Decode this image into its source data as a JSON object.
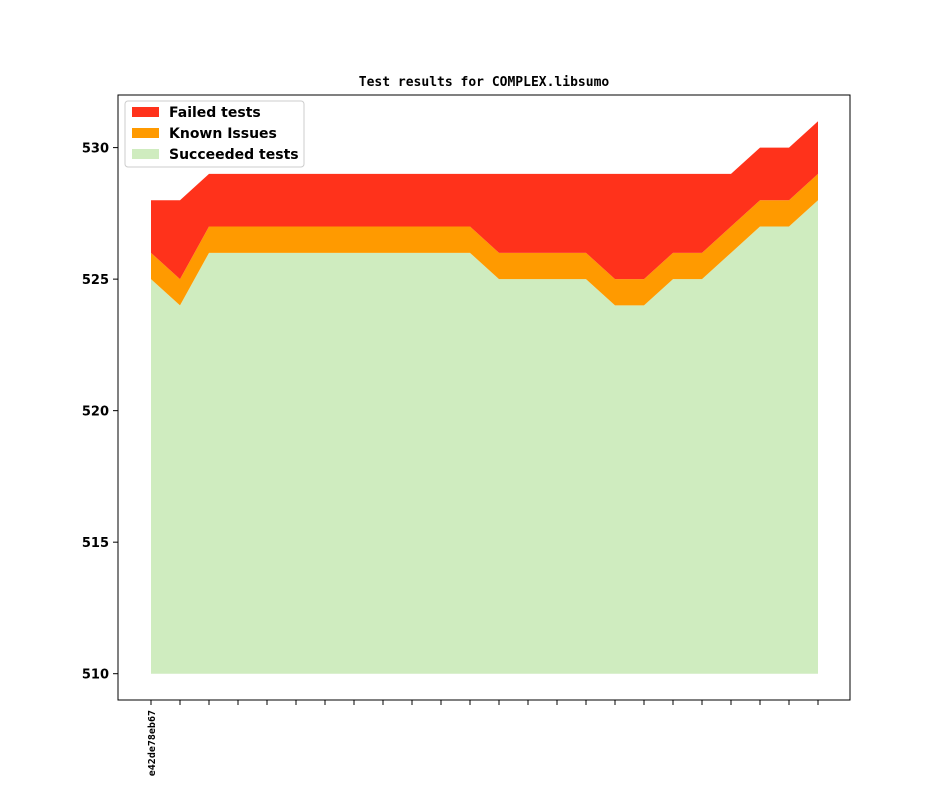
{
  "chart_data": {
    "type": "area",
    "title": "Test results for COMPLEX.libsumo",
    "xlabel": "",
    "ylabel": "",
    "ylim": [
      509,
      532
    ],
    "yticks": [
      510,
      515,
      520,
      525,
      530
    ],
    "x_tick_labels": [
      "e42de78eb67"
    ],
    "x_count": 24,
    "baseline": 510,
    "series": [
      {
        "name": "Succeeded tests",
        "color": "#cfecbf",
        "values": [
          525,
          524,
          526,
          526,
          526,
          526,
          526,
          526,
          526,
          526,
          526,
          526,
          525,
          525,
          525,
          525,
          524,
          524,
          525,
          525,
          526,
          527,
          527,
          528
        ]
      },
      {
        "name": "Known Issues",
        "color": "#ff9a00",
        "values": [
          1,
          1,
          1,
          1,
          1,
          1,
          1,
          1,
          1,
          1,
          1,
          1,
          1,
          1,
          1,
          1,
          1,
          1,
          1,
          1,
          1,
          1,
          1,
          1
        ]
      },
      {
        "name": "Failed tests",
        "color": "#ff321b",
        "values": [
          2,
          3,
          2,
          2,
          2,
          2,
          2,
          2,
          2,
          2,
          2,
          2,
          3,
          3,
          3,
          3,
          4,
          4,
          3,
          3,
          2,
          2,
          2,
          2
        ]
      }
    ],
    "legend": {
      "placement": "top-left",
      "order": [
        "Failed tests",
        "Known Issues",
        "Succeeded tests"
      ]
    },
    "grid": false
  }
}
